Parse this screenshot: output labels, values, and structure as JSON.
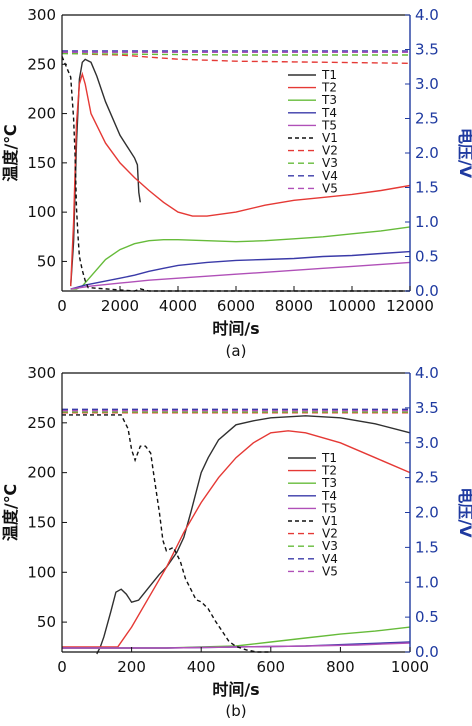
{
  "chart_data": [
    {
      "type": "line",
      "panel_label": "(a)",
      "xlabel": "时间/s",
      "ylabel_left": "温度/℃",
      "ylabel_right": "电压/V",
      "xlim": [
        0,
        12000
      ],
      "ylim_left": [
        20,
        300
      ],
      "ylim_right": [
        0,
        4.0
      ],
      "xticks": [
        0,
        2000,
        4000,
        6000,
        8000,
        10000,
        12000
      ],
      "yticks_left": [
        50,
        100,
        150,
        200,
        250,
        300
      ],
      "yticks_right": [
        0.0,
        0.5,
        1.0,
        1.5,
        2.0,
        2.5,
        3.0,
        3.5,
        4.0
      ],
      "legend_position": "top-right",
      "series": [
        {
          "name": "T1",
          "axis": "left",
          "color": "#303030",
          "dash": "",
          "x": [
            300,
            400,
            500,
            600,
            700,
            800,
            1000,
            1200,
            1500,
            2000,
            2500,
            2600,
            2650,
            2700
          ],
          "y": [
            25,
            70,
            170,
            235,
            252,
            255,
            252,
            238,
            212,
            178,
            155,
            148,
            120,
            110
          ]
        },
        {
          "name": "T2",
          "axis": "left",
          "color": "#e53935",
          "dash": "",
          "x": [
            300,
            400,
            500,
            600,
            700,
            800,
            1000,
            1500,
            2000,
            2500,
            3000,
            3500,
            4000,
            4500,
            5000,
            5500,
            6000,
            7000,
            8000,
            9000,
            10000,
            11000,
            12000
          ],
          "y": [
            25,
            90,
            190,
            230,
            240,
            230,
            200,
            170,
            150,
            135,
            122,
            110,
            100,
            96,
            96,
            98,
            100,
            107,
            112,
            115,
            118,
            122,
            127
          ]
        },
        {
          "name": "T3",
          "axis": "left",
          "color": "#66bb3a",
          "dash": "",
          "x": [
            300,
            500,
            700,
            1000,
            1500,
            2000,
            2500,
            3000,
            3500,
            4000,
            5000,
            6000,
            7000,
            8000,
            9000,
            10000,
            11000,
            12000
          ],
          "y": [
            22,
            22,
            25,
            35,
            52,
            62,
            68,
            71,
            72,
            72,
            71,
            70,
            71,
            73,
            75,
            78,
            81,
            85
          ]
        },
        {
          "name": "T4",
          "axis": "left",
          "color": "#3a3aa8",
          "dash": "",
          "x": [
            300,
            800,
            1500,
            2000,
            2500,
            3000,
            3500,
            4000,
            5000,
            6000,
            7000,
            8000,
            9000,
            10000,
            11000,
            12000
          ],
          "y": [
            22,
            26,
            30,
            33,
            36,
            40,
            43,
            46,
            49,
            51,
            52,
            53,
            55,
            56,
            58,
            60
          ]
        },
        {
          "name": "T5",
          "axis": "left",
          "color": "#b050b8",
          "dash": "",
          "x": [
            300,
            1000,
            2000,
            3000,
            4000,
            5000,
            6000,
            7000,
            8000,
            9000,
            10000,
            11000,
            12000
          ],
          "y": [
            22,
            25,
            28,
            31,
            33,
            35,
            37,
            39,
            41,
            43,
            45,
            47,
            49
          ]
        },
        {
          "name": "V1",
          "axis": "right",
          "color": "#111111",
          "dash": "4,3",
          "x": [
            0,
            300,
            400,
            450,
            500,
            550,
            600,
            700,
            800,
            900,
            2500,
            2700,
            3000,
            12000
          ],
          "y": [
            3.4,
            3.1,
            2.5,
            2.0,
            1.2,
            0.8,
            0.5,
            0.3,
            0.15,
            0.05,
            0.0,
            0.03,
            0.0,
            0.0
          ]
        },
        {
          "name": "V2",
          "axis": "right",
          "color": "#e53935",
          "dash": "6,4",
          "x": [
            0,
            1000,
            2000,
            3000,
            4000,
            6000,
            8000,
            10000,
            12000
          ],
          "y": [
            3.45,
            3.43,
            3.42,
            3.39,
            3.36,
            3.33,
            3.32,
            3.31,
            3.3
          ]
        },
        {
          "name": "V3",
          "axis": "right",
          "color": "#66bb3a",
          "dash": "6,4",
          "x": [
            0,
            3000,
            6000,
            9000,
            12000
          ],
          "y": [
            3.44,
            3.43,
            3.42,
            3.42,
            3.42
          ]
        },
        {
          "name": "V4",
          "axis": "right",
          "color": "#3a3aa8",
          "dash": "6,4",
          "x": [
            0,
            3000,
            6000,
            9000,
            12000
          ],
          "y": [
            3.48,
            3.48,
            3.48,
            3.48,
            3.48
          ]
        },
        {
          "name": "V5",
          "axis": "right",
          "color": "#b050b8",
          "dash": "6,4",
          "x": [
            0,
            3000,
            6000,
            9000,
            12000
          ],
          "y": [
            3.46,
            3.46,
            3.46,
            3.46,
            3.46
          ]
        }
      ]
    },
    {
      "type": "line",
      "panel_label": "(b)",
      "xlabel": "时间/s",
      "ylabel_left": "温度/℃",
      "ylabel_right": "电压/V",
      "xlim": [
        0,
        1000
      ],
      "ylim_left": [
        20,
        300
      ],
      "ylim_right": [
        0,
        4.0
      ],
      "xticks": [
        0,
        200,
        400,
        600,
        800,
        1000
      ],
      "yticks_left": [
        50,
        100,
        150,
        200,
        250,
        300
      ],
      "yticks_right": [
        0.0,
        0.5,
        1.0,
        1.5,
        2.0,
        2.5,
        3.0,
        3.5,
        4.0
      ],
      "legend_position": "center-right",
      "series": [
        {
          "name": "T1",
          "axis": "left",
          "color": "#303030",
          "dash": "",
          "x": [
            100,
            110,
            120,
            140,
            155,
            170,
            185,
            200,
            220,
            250,
            280,
            300,
            330,
            350,
            370,
            400,
            420,
            450,
            500,
            550,
            600,
            700,
            800,
            900,
            1000
          ],
          "y": [
            18,
            25,
            35,
            60,
            80,
            83,
            78,
            70,
            72,
            85,
            98,
            105,
            120,
            135,
            160,
            200,
            215,
            233,
            248,
            252,
            255,
            257,
            255,
            249,
            240
          ]
        },
        {
          "name": "T2",
          "axis": "left",
          "color": "#e53935",
          "dash": "",
          "x": [
            0,
            160,
            200,
            250,
            300,
            350,
            400,
            450,
            500,
            550,
            600,
            650,
            700,
            800,
            900,
            1000
          ],
          "y": [
            25,
            25,
            45,
            75,
            105,
            140,
            170,
            195,
            215,
            230,
            240,
            242,
            240,
            230,
            215,
            200
          ]
        },
        {
          "name": "T3",
          "axis": "left",
          "color": "#66bb3a",
          "dash": "",
          "x": [
            0,
            300,
            400,
            500,
            600,
            700,
            800,
            900,
            1000
          ],
          "y": [
            24,
            24,
            25,
            26,
            30,
            34,
            38,
            41,
            45
          ]
        },
        {
          "name": "T4",
          "axis": "left",
          "color": "#3a3aa8",
          "dash": "",
          "x": [
            0,
            300,
            500,
            700,
            850,
            1000
          ],
          "y": [
            24,
            24,
            25,
            26,
            28,
            30
          ]
        },
        {
          "name": "T5",
          "axis": "left",
          "color": "#b050b8",
          "dash": "",
          "x": [
            0,
            300,
            500,
            700,
            850,
            1000
          ],
          "y": [
            24,
            24,
            25,
            26,
            27,
            29
          ]
        },
        {
          "name": "V1",
          "axis": "right",
          "color": "#111111",
          "dash": "4,3",
          "x": [
            0,
            170,
            190,
            200,
            210,
            225,
            240,
            255,
            265,
            280,
            290,
            300,
            320,
            340,
            355,
            370,
            385,
            400,
            420,
            440,
            460,
            480,
            500,
            530,
            560,
            600
          ],
          "y": [
            3.4,
            3.4,
            3.2,
            2.9,
            2.75,
            2.95,
            2.95,
            2.85,
            2.5,
            2.0,
            1.6,
            1.45,
            1.5,
            1.3,
            1.05,
            0.9,
            0.75,
            0.72,
            0.62,
            0.45,
            0.3,
            0.15,
            0.08,
            0.03,
            0.0,
            0.0
          ]
        },
        {
          "name": "V2",
          "axis": "right",
          "color": "#e53935",
          "dash": "6,4",
          "x": [
            0,
            250,
            500,
            750,
            1000
          ],
          "y": [
            3.43,
            3.43,
            3.43,
            3.43,
            3.43
          ]
        },
        {
          "name": "V3",
          "axis": "right",
          "color": "#66bb3a",
          "dash": "6,4",
          "x": [
            0,
            250,
            500,
            750,
            1000
          ],
          "y": [
            3.44,
            3.44,
            3.44,
            3.44,
            3.44
          ]
        },
        {
          "name": "V4",
          "axis": "right",
          "color": "#3a3aa8",
          "dash": "6,4",
          "x": [
            0,
            250,
            500,
            750,
            1000
          ],
          "y": [
            3.48,
            3.48,
            3.48,
            3.48,
            3.48
          ]
        },
        {
          "name": "V5",
          "axis": "right",
          "color": "#b050b8",
          "dash": "6,4",
          "x": [
            0,
            250,
            500,
            750,
            1000
          ],
          "y": [
            3.46,
            3.46,
            3.46,
            3.46,
            3.46
          ]
        }
      ]
    }
  ]
}
